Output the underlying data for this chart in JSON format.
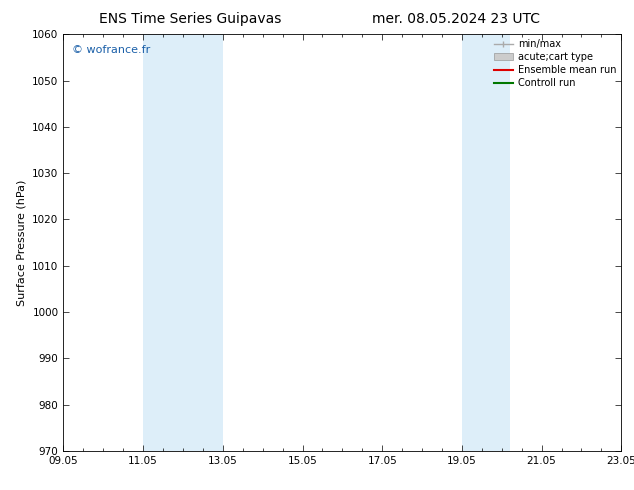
{
  "title_left": "ENS Time Series Guipavas",
  "title_right": "mer. 08.05.2024 23 UTC",
  "ylabel": "Surface Pressure (hPa)",
  "ylim": [
    970,
    1060
  ],
  "yticks": [
    970,
    980,
    990,
    1000,
    1010,
    1020,
    1030,
    1040,
    1050,
    1060
  ],
  "xlim_start": 0,
  "xlim_end": 14,
  "xtick_labels": [
    "09.05",
    "11.05",
    "13.05",
    "15.05",
    "17.05",
    "19.05",
    "21.05",
    "23.05"
  ],
  "xtick_positions": [
    0,
    2,
    4,
    6,
    8,
    10,
    12,
    14
  ],
  "shaded_bands": [
    {
      "x_start": 2,
      "x_end": 4,
      "color": "#ddeef9"
    },
    {
      "x_start": 10,
      "x_end": 10.5,
      "color": "#ddeef9"
    },
    {
      "x_start": 10.5,
      "x_end": 11.2,
      "color": "#ddeef9"
    }
  ],
  "watermark": "© wofrance.fr",
  "watermark_color": "#1a5fa8",
  "legend_entries": [
    {
      "label": "min/max",
      "color": "#aaaaaa",
      "type": "hline"
    },
    {
      "label": "acute;cart type",
      "color": "#cccccc",
      "type": "rect"
    },
    {
      "label": "Ensemble mean run",
      "color": "#dd0000",
      "type": "line"
    },
    {
      "label": "Controll run",
      "color": "#007700",
      "type": "line"
    }
  ],
  "bg_color": "#ffffff",
  "plot_bg_color": "#ffffff",
  "title_fontsize": 10,
  "tick_fontsize": 7.5,
  "ylabel_fontsize": 8,
  "watermark_fontsize": 8,
  "legend_fontsize": 7
}
